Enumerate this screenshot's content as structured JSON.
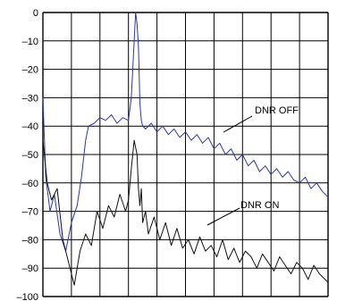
{
  "chart_data": {
    "type": "line",
    "ylim": [
      -100,
      0
    ],
    "xlim": [
      0,
      10
    ],
    "grid": true,
    "y_ticks": [
      0,
      -10,
      -20,
      -30,
      -40,
      -50,
      -60,
      -70,
      -80,
      -90,
      -100
    ],
    "y_tick_labels": [
      "0",
      "–10",
      "–20",
      "–30",
      "–40",
      "–50",
      "–60",
      "–70",
      "–80",
      "–90",
      "–100"
    ],
    "x_ticks": [
      0,
      1,
      2,
      3,
      4,
      5,
      6,
      7,
      8,
      9,
      10
    ],
    "x_tick_labels": [],
    "colors": {
      "dnr_off": "#2b3a9a",
      "dnr_on": "#111111",
      "grid": "#000000"
    },
    "series": [
      {
        "name": "DNR OFF",
        "color": "#2b3a9a",
        "x": [
          0.0,
          0.1,
          0.25,
          0.4,
          0.6,
          0.8,
          1.0,
          1.2,
          1.35,
          1.5,
          1.6,
          1.8,
          2.0,
          2.2,
          2.4,
          2.6,
          2.8,
          3.0,
          3.1,
          3.2,
          3.25,
          3.3,
          3.35,
          3.4,
          3.45,
          3.5,
          3.6,
          3.8,
          4.0,
          4.2,
          4.4,
          4.6,
          4.8,
          5.0,
          5.2,
          5.4,
          5.6,
          5.8,
          6.0,
          6.2,
          6.4,
          6.6,
          6.8,
          7.0,
          7.2,
          7.4,
          7.6,
          7.8,
          8.0,
          8.2,
          8.4,
          8.6,
          8.8,
          9.0,
          9.2,
          9.4,
          9.6,
          9.8,
          10.0
        ],
        "y": [
          -30,
          -58,
          -70,
          -64,
          -78,
          -84,
          -74,
          -68,
          -58,
          -45,
          -40,
          -39,
          -37,
          -38,
          -36,
          -39,
          -37,
          -38,
          -30,
          -10,
          0,
          -4,
          -12,
          -32,
          -38,
          -40,
          -41,
          -39,
          -42,
          -40,
          -43,
          -41,
          -44,
          -42,
          -45,
          -43,
          -46,
          -44,
          -48,
          -46,
          -50,
          -48,
          -52,
          -50,
          -54,
          -52,
          -56,
          -54,
          -57,
          -55,
          -58,
          -56,
          -59,
          -60,
          -58,
          -62,
          -60,
          -63,
          -65
        ]
      },
      {
        "name": "DNR ON",
        "color": "#111111",
        "x": [
          0.0,
          0.15,
          0.3,
          0.5,
          0.7,
          0.9,
          1.1,
          1.3,
          1.5,
          1.7,
          1.9,
          2.1,
          2.3,
          2.5,
          2.7,
          2.9,
          3.0,
          3.1,
          3.2,
          3.3,
          3.35,
          3.4,
          3.45,
          3.5,
          3.6,
          3.7,
          3.9,
          4.1,
          4.3,
          4.5,
          4.7,
          4.9,
          5.1,
          5.3,
          5.5,
          5.7,
          5.9,
          6.1,
          6.3,
          6.5,
          6.7,
          6.9,
          7.1,
          7.3,
          7.5,
          7.7,
          7.9,
          8.1,
          8.3,
          8.5,
          8.7,
          8.9,
          9.1,
          9.3,
          9.5,
          9.7,
          10.0
        ],
        "y": [
          -45,
          -60,
          -66,
          -62,
          -80,
          -88,
          -96,
          -84,
          -78,
          -82,
          -70,
          -76,
          -68,
          -72,
          -64,
          -70,
          -66,
          -55,
          -45,
          -50,
          -62,
          -68,
          -62,
          -74,
          -70,
          -78,
          -72,
          -80,
          -74,
          -82,
          -76,
          -83,
          -80,
          -85,
          -79,
          -84,
          -82,
          -86,
          -80,
          -87,
          -83,
          -88,
          -84,
          -86,
          -90,
          -85,
          -88,
          -91,
          -86,
          -89,
          -92,
          -88,
          -90,
          -94,
          -89,
          -92,
          -95
        ]
      }
    ],
    "annotations": [
      {
        "text": "DNR OFF"
      },
      {
        "text": "DNR ON"
      }
    ]
  }
}
